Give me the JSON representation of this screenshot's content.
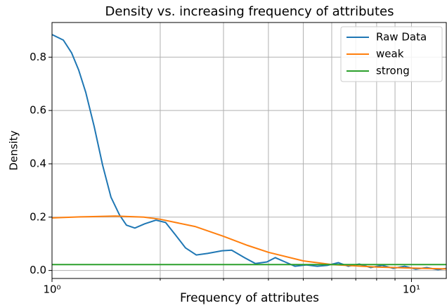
{
  "chart_data": {
    "type": "line",
    "title": "Density vs. increasing frequency of attributes",
    "x_label": "Frequency of attributes",
    "y_label": "Density",
    "x_scale": "log",
    "xlim": [
      1,
      12.5
    ],
    "ylim": [
      -0.03,
      0.93
    ],
    "xticks": [
      {
        "value": 1,
        "label": "10⁰"
      },
      {
        "value": 10,
        "label": "10¹"
      }
    ],
    "x_minor_ticks": [
      2,
      3,
      4,
      5,
      6,
      7,
      8,
      9
    ],
    "yticks": [
      {
        "value": 0,
        "label": "0.0"
      },
      0.2,
      0.4,
      0.6,
      0.8
    ],
    "grid": true,
    "legend": "upper right",
    "series": [
      {
        "name": "Raw Data",
        "color": "#1f77b4",
        "x": [
          1,
          1.075,
          1.134,
          1.186,
          1.241,
          1.31,
          1.383,
          1.459,
          1.54,
          1.611,
          1.7,
          1.81,
          1.946,
          2.07,
          2.21,
          2.35,
          2.52,
          2.71,
          2.97,
          3.16,
          3.43,
          3.68,
          3.96,
          4.18,
          4.45,
          4.74,
          5.1,
          5.47,
          5.83,
          6.26,
          6.67,
          7.16,
          7.7,
          8.29,
          8.9,
          9.57,
          10.27,
          11.03,
          11.85,
          12.5
        ],
        "values": [
          0.885,
          0.864,
          0.816,
          0.752,
          0.668,
          0.54,
          0.395,
          0.275,
          0.209,
          0.17,
          0.159,
          0.175,
          0.189,
          0.18,
          0.132,
          0.085,
          0.058,
          0.064,
          0.074,
          0.076,
          0.048,
          0.026,
          0.032,
          0.048,
          0.032,
          0.016,
          0.021,
          0.016,
          0.019,
          0.029,
          0.016,
          0.024,
          0.011,
          0.019,
          0.008,
          0.016,
          0.005,
          0.011,
          0.003,
          0.008
        ]
      },
      {
        "name": "weak",
        "color": "#ff7f0e",
        "x": [
          1,
          1.2,
          1.5,
          1.8,
          2,
          2.5,
          3,
          3.5,
          4,
          5,
          6,
          8,
          10,
          12.5
        ],
        "values": [
          0.197,
          0.201,
          0.204,
          0.2,
          0.192,
          0.165,
          0.128,
          0.094,
          0.068,
          0.036,
          0.022,
          0.013,
          0.009,
          0.006
        ]
      },
      {
        "name": "strong",
        "color": "#2ca02c",
        "x": [
          1,
          12.5
        ],
        "values": [
          0.022,
          0.022
        ]
      }
    ]
  }
}
